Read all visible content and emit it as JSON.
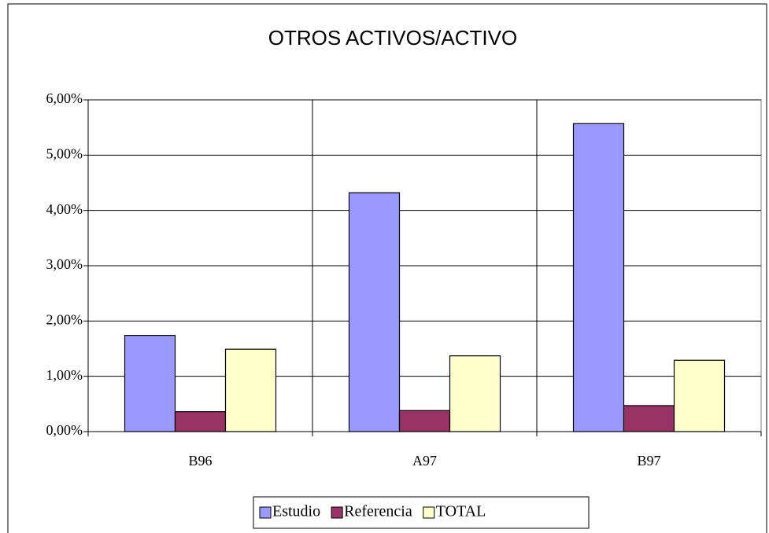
{
  "chart_data": {
    "type": "bar",
    "title": "OTROS ACTIVOS/ACTIVO",
    "categories": [
      "B96",
      "A97",
      "B97"
    ],
    "series": [
      {
        "name": "Estudio",
        "color": "#9999ff",
        "values": [
          1.74,
          4.32,
          5.57
        ]
      },
      {
        "name": "Referencia",
        "color": "#993366",
        "values": [
          0.36,
          0.38,
          0.47
        ]
      },
      {
        "name": "TOTAL",
        "color": "#ffffcc",
        "values": [
          1.49,
          1.37,
          1.29
        ]
      }
    ],
    "ylim": [
      0,
      6
    ],
    "yticks": [
      {
        "value": 0,
        "label": "0,00%"
      },
      {
        "value": 1,
        "label": "1,00%"
      },
      {
        "value": 2,
        "label": "2,00%"
      },
      {
        "value": 3,
        "label": "3,00%"
      },
      {
        "value": 4,
        "label": "4,00%"
      },
      {
        "value": 5,
        "label": "5,00%"
      },
      {
        "value": 6,
        "label": "6,00%"
      }
    ],
    "grid": true,
    "legend": "bottom"
  }
}
